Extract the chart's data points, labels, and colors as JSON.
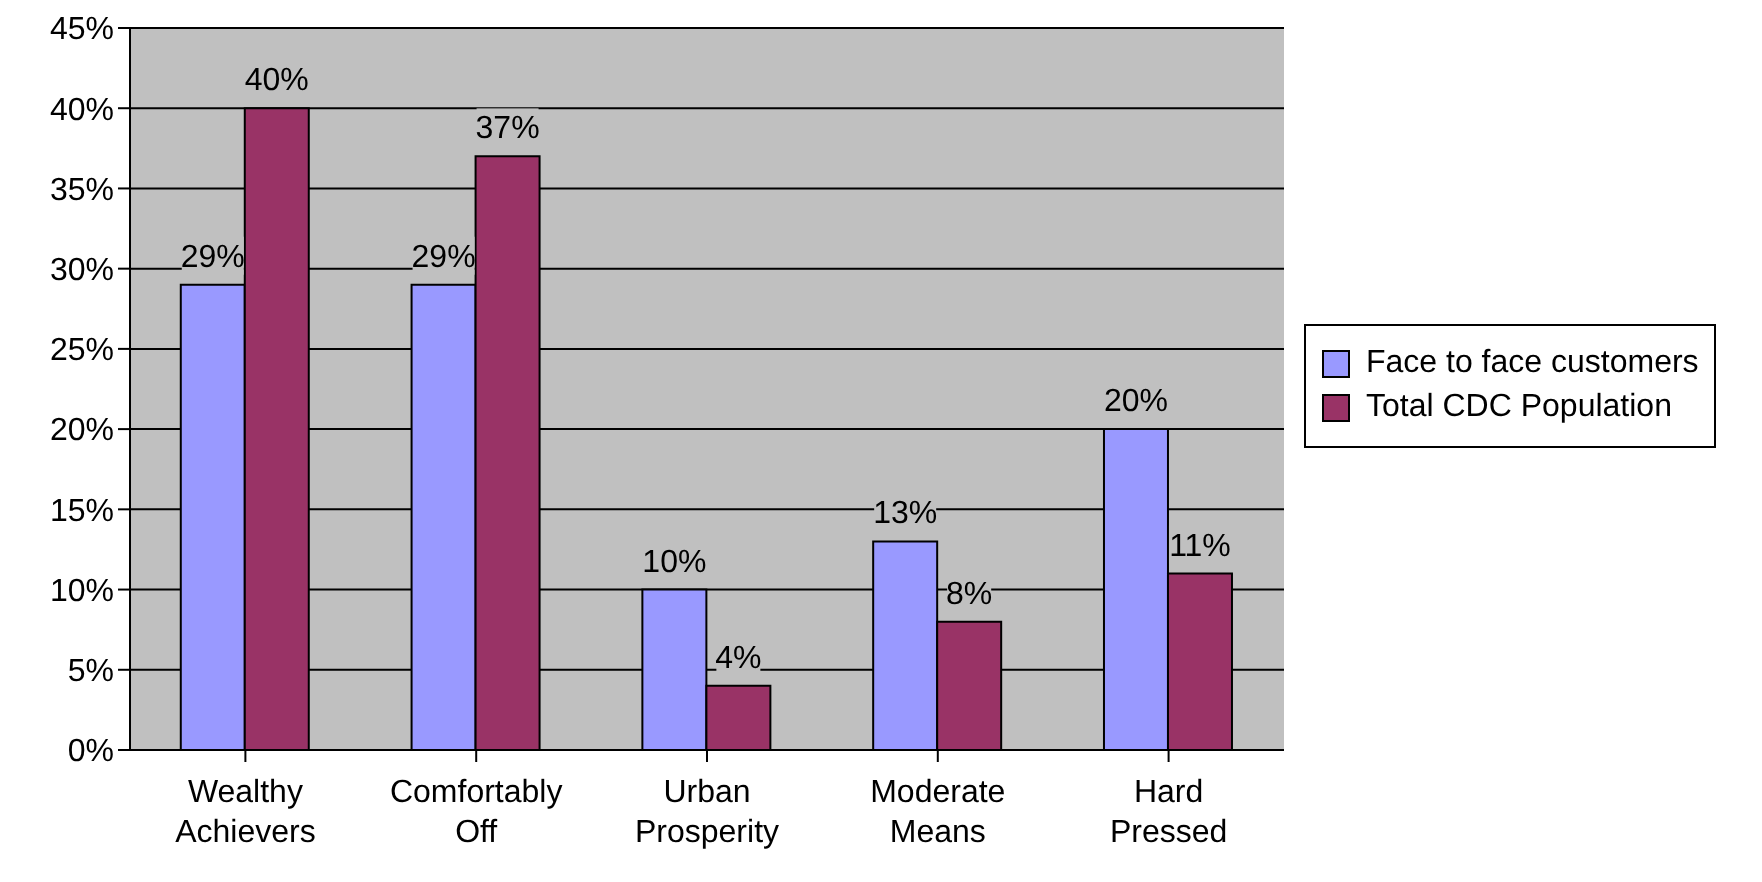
{
  "chart_data": {
    "type": "bar",
    "categories": [
      "Wealthy Achievers",
      "Comfortably Off",
      "Urban Prosperity",
      "Moderate Means",
      "Hard Pressed"
    ],
    "series": [
      {
        "name": "Face to face customers",
        "color": "#9999ff",
        "values": [
          29,
          29,
          10,
          13,
          20
        ],
        "value_labels": [
          "29%",
          "29%",
          "10%",
          "13%",
          "20%"
        ]
      },
      {
        "name": "Total CDC Population",
        "color": "#993366",
        "values": [
          40,
          37,
          4,
          8,
          11
        ],
        "value_labels": [
          "40%",
          "37%",
          "4%",
          "8%",
          "11%"
        ]
      }
    ],
    "ylim": [
      0,
      45
    ],
    "yticks": [
      {
        "value": 0,
        "label": "0%"
      },
      {
        "value": 5,
        "label": "5%"
      },
      {
        "value": 10,
        "label": "10%"
      },
      {
        "value": 15,
        "label": "15%"
      },
      {
        "value": 20,
        "label": "20%"
      },
      {
        "value": 25,
        "label": "25%"
      },
      {
        "value": 30,
        "label": "30%"
      },
      {
        "value": 35,
        "label": "35%"
      },
      {
        "value": 40,
        "label": "40%"
      },
      {
        "value": 45,
        "label": "45%"
      }
    ],
    "grid": "y",
    "legend": "right"
  }
}
